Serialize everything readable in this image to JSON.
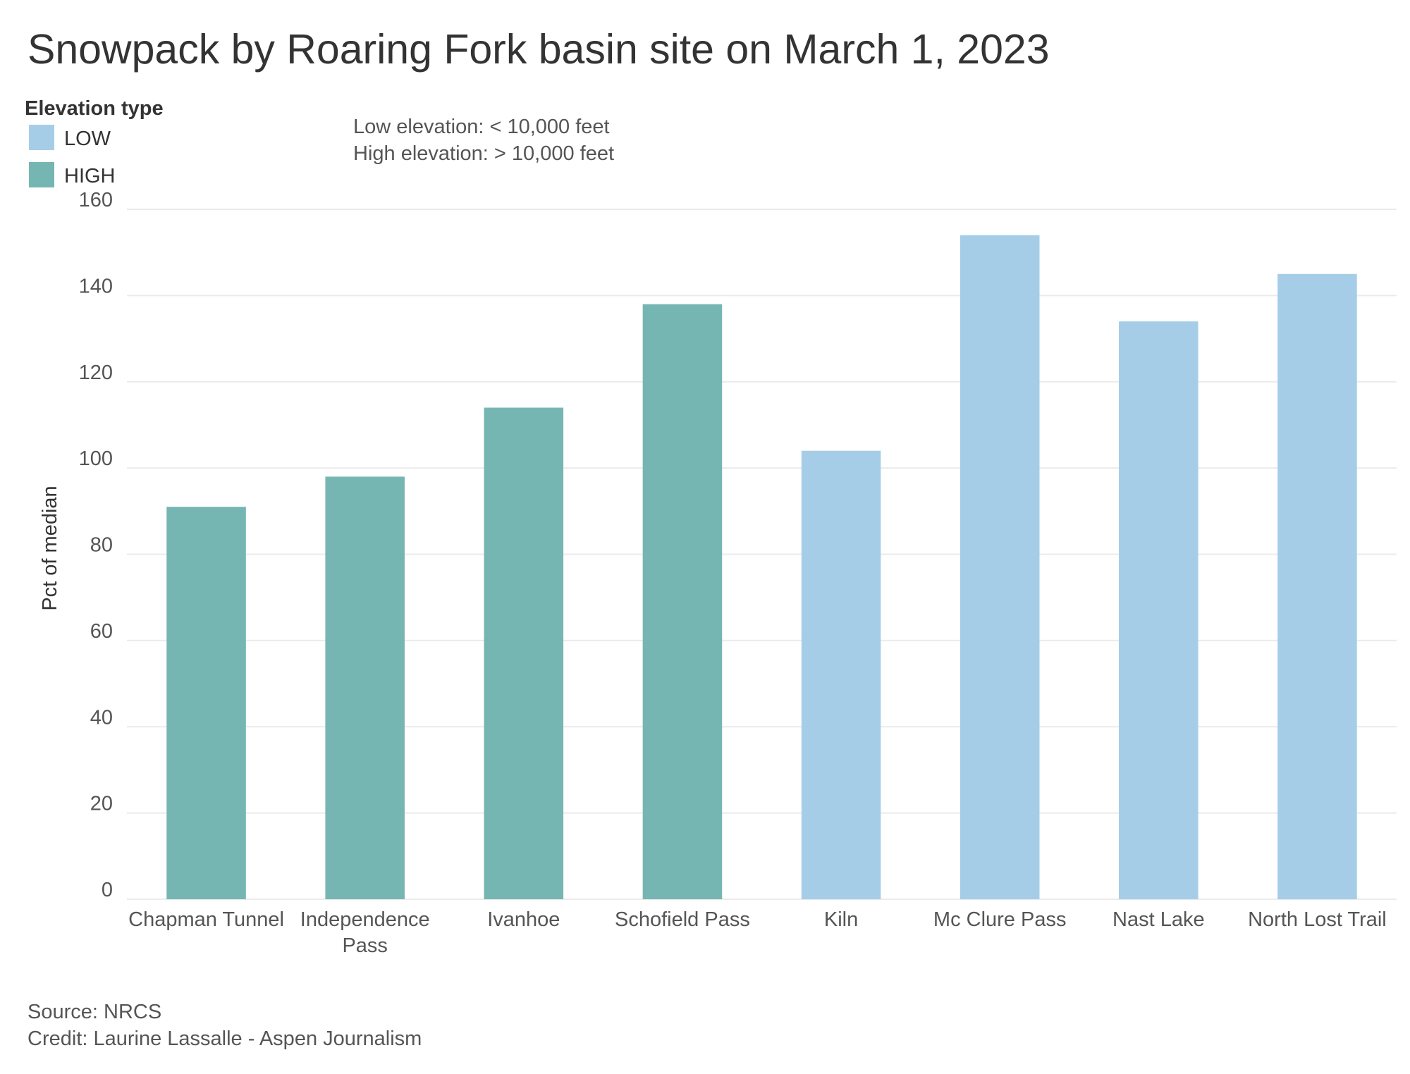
{
  "chart_data": {
    "type": "bar",
    "title": "Snowpack by Roaring Fork basin site on March 1, 2023",
    "legend_title": "Elevation type",
    "annotations": [
      "Low elevation: < 10,000 feet",
      "High elevation: > 10,000 feet"
    ],
    "y_label": "Pct of median",
    "categories": [
      "Chapman Tunnel",
      "Independence Pass",
      "Ivanhoe",
      "Schofield Pass",
      "Kiln",
      "Mc Clure Pass",
      "Nast Lake",
      "North Lost Trail"
    ],
    "series": [
      {
        "name": "LOW",
        "color": "#a6cde8",
        "values": [
          null,
          null,
          null,
          null,
          104,
          154,
          134,
          145
        ]
      },
      {
        "name": "HIGH",
        "color": "#76b6b2",
        "values": [
          91,
          98,
          114,
          138,
          null,
          null,
          null,
          null
        ]
      }
    ],
    "ylim": [
      0,
      160
    ],
    "yticks": [
      0,
      20,
      40,
      60,
      80,
      100,
      120,
      140,
      160
    ],
    "grid": true,
    "source": "Source: NRCS",
    "credit": "Credit: Laurine Lassalle - Aspen Journalism"
  }
}
